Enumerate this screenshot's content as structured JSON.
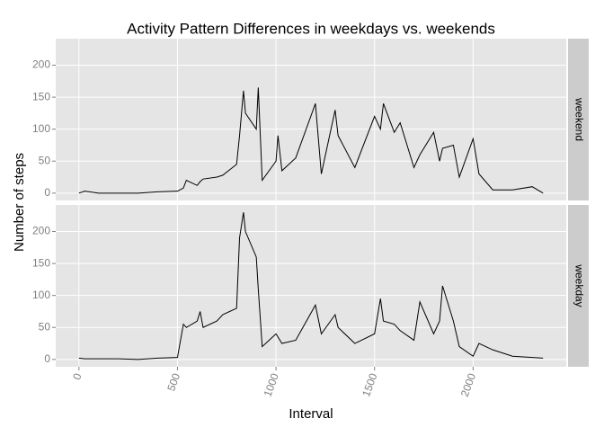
{
  "chart_data": {
    "type": "line",
    "title": "Activity Pattern Differences in weekdays vs. weekends",
    "x_label": "Interval",
    "y_label": "Number of steps",
    "x": [
      0,
      30,
      100,
      200,
      300,
      400,
      500,
      530,
      545,
      600,
      615,
      630,
      700,
      730,
      800,
      815,
      835,
      845,
      900,
      910,
      930,
      1000,
      1010,
      1030,
      1100,
      1200,
      1230,
      1300,
      1315,
      1400,
      1500,
      1530,
      1545,
      1600,
      1630,
      1700,
      1730,
      1800,
      1830,
      1845,
      1900,
      1930,
      2000,
      2030,
      2100,
      2200,
      2300,
      2355
    ],
    "series": [
      {
        "name": "weekend",
        "color": "#000000",
        "values": [
          0,
          3,
          0,
          0,
          0,
          2,
          3,
          8,
          20,
          12,
          18,
          22,
          25,
          28,
          45,
          90,
          160,
          125,
          100,
          165,
          20,
          50,
          90,
          35,
          55,
          140,
          30,
          130,
          90,
          40,
          120,
          100,
          140,
          95,
          110,
          40,
          60,
          95,
          50,
          70,
          75,
          25,
          85,
          30,
          5,
          5,
          10,
          0
        ]
      },
      {
        "name": "weekday",
        "color": "#000000",
        "values": [
          2,
          1,
          1,
          1,
          0,
          2,
          3,
          55,
          50,
          60,
          75,
          50,
          60,
          70,
          80,
          190,
          230,
          200,
          160,
          110,
          20,
          40,
          35,
          25,
          30,
          85,
          40,
          70,
          50,
          25,
          40,
          95,
          60,
          55,
          45,
          30,
          90,
          40,
          60,
          115,
          60,
          20,
          5,
          25,
          15,
          5,
          3,
          2
        ]
      }
    ],
    "xlim": [
      -117.75,
      2472.75
    ],
    "ylim": [
      -11.5,
      241.5
    ],
    "xticks": [
      0,
      500,
      1000,
      1500,
      2000
    ],
    "yticks": [
      0,
      50,
      100,
      150,
      200
    ],
    "grid": true,
    "facets": true
  }
}
